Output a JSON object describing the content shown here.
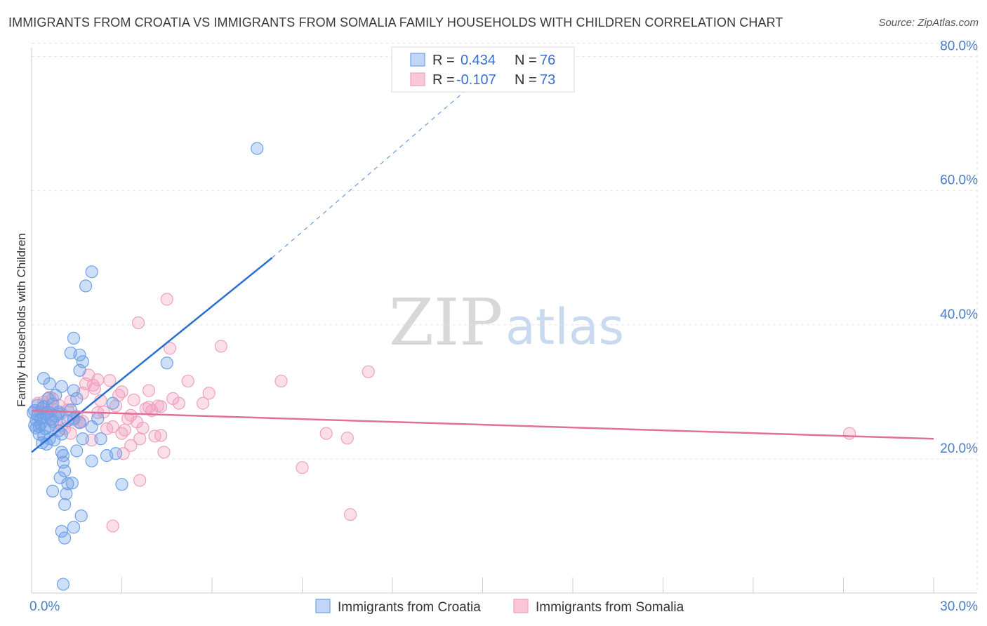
{
  "title": "IMMIGRANTS FROM CROATIA VS IMMIGRANTS FROM SOMALIA FAMILY HOUSEHOLDS WITH CHILDREN CORRELATION CHART",
  "source": "Source: ZipAtlas.com",
  "watermark": {
    "part1": "ZIP",
    "part2": "atlas"
  },
  "legend": {
    "r_label": "R =",
    "n_label": "N =",
    "croatia": {
      "r": "0.434",
      "n": "76"
    },
    "somalia": {
      "r": "-0.107",
      "n": "73"
    }
  },
  "chart_data": {
    "type": "scatter",
    "title": "IMMIGRANTS FROM CROATIA VS IMMIGRANTS FROM SOMALIA FAMILY HOUSEHOLDS WITH CHILDREN CORRELATION CHART",
    "xlabel": "",
    "ylabel": "Family Households with Children",
    "xlim": [
      0,
      30
    ],
    "ylim": [
      0,
      82
    ],
    "x_tick_labels": [
      {
        "value": 0,
        "label": "0.0%"
      },
      {
        "value": 30,
        "label": "30.0%"
      }
    ],
    "y_tick_labels": [
      {
        "value": 20,
        "label": "20.0%"
      },
      {
        "value": 40,
        "label": "40.0%"
      },
      {
        "value": 60,
        "label": "60.0%"
      },
      {
        "value": 80,
        "label": "80.0%"
      }
    ],
    "grid": true,
    "colors": {
      "croatia": "#6fa0e8",
      "croatia_line": "#2a6fd0",
      "somalia": "#f0a0bd",
      "somalia_line": "#e0709a"
    },
    "series": [
      {
        "name": "Immigrants from Croatia",
        "R": 0.434,
        "N": 76,
        "trend": {
          "x": [
            0,
            8.0
          ],
          "y": [
            21.0,
            50.0
          ],
          "dashed_to": [
            16.0,
            81.0
          ]
        },
        "points": [
          [
            0.1,
            27.2
          ],
          [
            0.2,
            26.5
          ],
          [
            0.15,
            25.8
          ],
          [
            0.3,
            26.0
          ],
          [
            0.1,
            25.0
          ],
          [
            0.25,
            24.8
          ],
          [
            0.35,
            27.5
          ],
          [
            0.4,
            26.2
          ],
          [
            0.2,
            28.0
          ],
          [
            0.3,
            25.2
          ],
          [
            0.45,
            24.5
          ],
          [
            0.5,
            26.8
          ],
          [
            0.6,
            24.9
          ],
          [
            0.55,
            27.0
          ],
          [
            0.7,
            25.6
          ],
          [
            0.8,
            26.4
          ],
          [
            0.15,
            24.6
          ],
          [
            0.05,
            26.9
          ],
          [
            0.4,
            23.4
          ],
          [
            0.6,
            23.0
          ],
          [
            0.35,
            22.4
          ],
          [
            0.5,
            22.2
          ],
          [
            0.75,
            22.8
          ],
          [
            0.9,
            24.2
          ],
          [
            1.0,
            23.7
          ],
          [
            1.2,
            25.7
          ],
          [
            0.9,
            26.7
          ],
          [
            1.3,
            27.3
          ],
          [
            0.7,
            28.2
          ],
          [
            1.4,
            26.0
          ],
          [
            1.6,
            25.4
          ],
          [
            1.5,
            29.0
          ],
          [
            0.8,
            29.5
          ],
          [
            1.4,
            30.2
          ],
          [
            1.0,
            30.8
          ],
          [
            0.6,
            31.2
          ],
          [
            0.4,
            32.0
          ],
          [
            1.6,
            33.2
          ],
          [
            1.7,
            34.5
          ],
          [
            1.3,
            35.8
          ],
          [
            1.6,
            35.5
          ],
          [
            1.4,
            38.0
          ],
          [
            2.0,
            24.8
          ],
          [
            1.7,
            23.0
          ],
          [
            1.5,
            21.2
          ],
          [
            1.05,
            20.5
          ],
          [
            1.05,
            19.5
          ],
          [
            1.1,
            18.2
          ],
          [
            1.35,
            16.4
          ],
          [
            0.95,
            17.2
          ],
          [
            1.2,
            16.3
          ],
          [
            2.5,
            20.5
          ],
          [
            2.3,
            23.0
          ],
          [
            2.8,
            20.8
          ],
          [
            2.0,
            19.7
          ],
          [
            3.0,
            16.2
          ],
          [
            0.7,
            15.2
          ],
          [
            1.15,
            14.8
          ],
          [
            1.1,
            13.2
          ],
          [
            1.65,
            11.5
          ],
          [
            1.4,
            9.8
          ],
          [
            1.0,
            9.2
          ],
          [
            1.1,
            8.2
          ],
          [
            1.05,
            1.3
          ],
          [
            1.8,
            45.8
          ],
          [
            2.0,
            47.9
          ],
          [
            7.5,
            66.3
          ],
          [
            4.5,
            34.3
          ],
          [
            2.7,
            28.3
          ],
          [
            2.2,
            26.0
          ],
          [
            1.0,
            21.0
          ],
          [
            0.4,
            27.8
          ],
          [
            0.9,
            27.0
          ],
          [
            0.25,
            23.7
          ],
          [
            0.55,
            29.0
          ],
          [
            0.65,
            25.9
          ]
        ]
      },
      {
        "name": "Immigrants from Somalia",
        "R": -0.107,
        "N": 73,
        "trend": {
          "x": [
            0,
            30
          ],
          "y": [
            27.2,
            23.0
          ]
        },
        "points": [
          [
            0.3,
            27.0
          ],
          [
            0.4,
            28.5
          ],
          [
            0.5,
            26.2
          ],
          [
            0.6,
            29.2
          ],
          [
            0.7,
            27.5
          ],
          [
            0.8,
            25.0
          ],
          [
            0.9,
            28.0
          ],
          [
            1.0,
            26.8
          ],
          [
            1.1,
            24.5
          ],
          [
            1.2,
            27.3
          ],
          [
            1.3,
            28.6
          ],
          [
            1.4,
            25.8
          ],
          [
            1.5,
            26.4
          ],
          [
            1.6,
            25.5
          ],
          [
            1.7,
            29.8
          ],
          [
            1.8,
            31.2
          ],
          [
            1.9,
            32.5
          ],
          [
            2.0,
            22.8
          ],
          [
            2.1,
            30.5
          ],
          [
            2.2,
            31.8
          ],
          [
            2.3,
            28.7
          ],
          [
            2.4,
            27.0
          ],
          [
            2.5,
            24.5
          ],
          [
            2.6,
            31.7
          ],
          [
            2.7,
            24.8
          ],
          [
            2.8,
            27.9
          ],
          [
            2.9,
            29.5
          ],
          [
            3.0,
            30.0
          ],
          [
            3.1,
            24.3
          ],
          [
            3.2,
            26.0
          ],
          [
            3.3,
            22.0
          ],
          [
            3.4,
            28.8
          ],
          [
            3.5,
            25.5
          ],
          [
            3.6,
            23.0
          ],
          [
            3.7,
            24.6
          ],
          [
            3.8,
            27.5
          ],
          [
            3.9,
            30.2
          ],
          [
            4.0,
            27.2
          ],
          [
            4.1,
            23.4
          ],
          [
            4.2,
            27.9
          ],
          [
            4.3,
            23.5
          ],
          [
            4.4,
            21.0
          ],
          [
            4.5,
            43.8
          ],
          [
            4.6,
            36.5
          ],
          [
            4.7,
            29.0
          ],
          [
            4.9,
            28.3
          ],
          [
            5.2,
            31.6
          ],
          [
            5.7,
            28.3
          ],
          [
            5.9,
            29.8
          ],
          [
            6.3,
            36.8
          ],
          [
            3.55,
            40.3
          ],
          [
            3.6,
            16.8
          ],
          [
            2.7,
            10.0
          ],
          [
            3.05,
            20.8
          ],
          [
            3.3,
            26.5
          ],
          [
            8.3,
            31.6
          ],
          [
            9.0,
            18.7
          ],
          [
            9.8,
            23.8
          ],
          [
            10.5,
            23.1
          ],
          [
            10.6,
            11.7
          ],
          [
            11.2,
            33.0
          ],
          [
            27.2,
            23.8
          ],
          [
            1.0,
            25.0
          ],
          [
            0.5,
            27.8
          ],
          [
            0.7,
            29.0
          ],
          [
            1.7,
            25.6
          ],
          [
            2.05,
            31.0
          ],
          [
            2.2,
            26.9
          ],
          [
            3.0,
            23.8
          ],
          [
            3.9,
            27.7
          ],
          [
            4.3,
            27.8
          ],
          [
            1.3,
            23.8
          ],
          [
            0.2,
            28.3
          ]
        ]
      }
    ]
  },
  "bottom_legend": [
    "Immigrants from Croatia",
    "Immigrants from Somalia"
  ]
}
